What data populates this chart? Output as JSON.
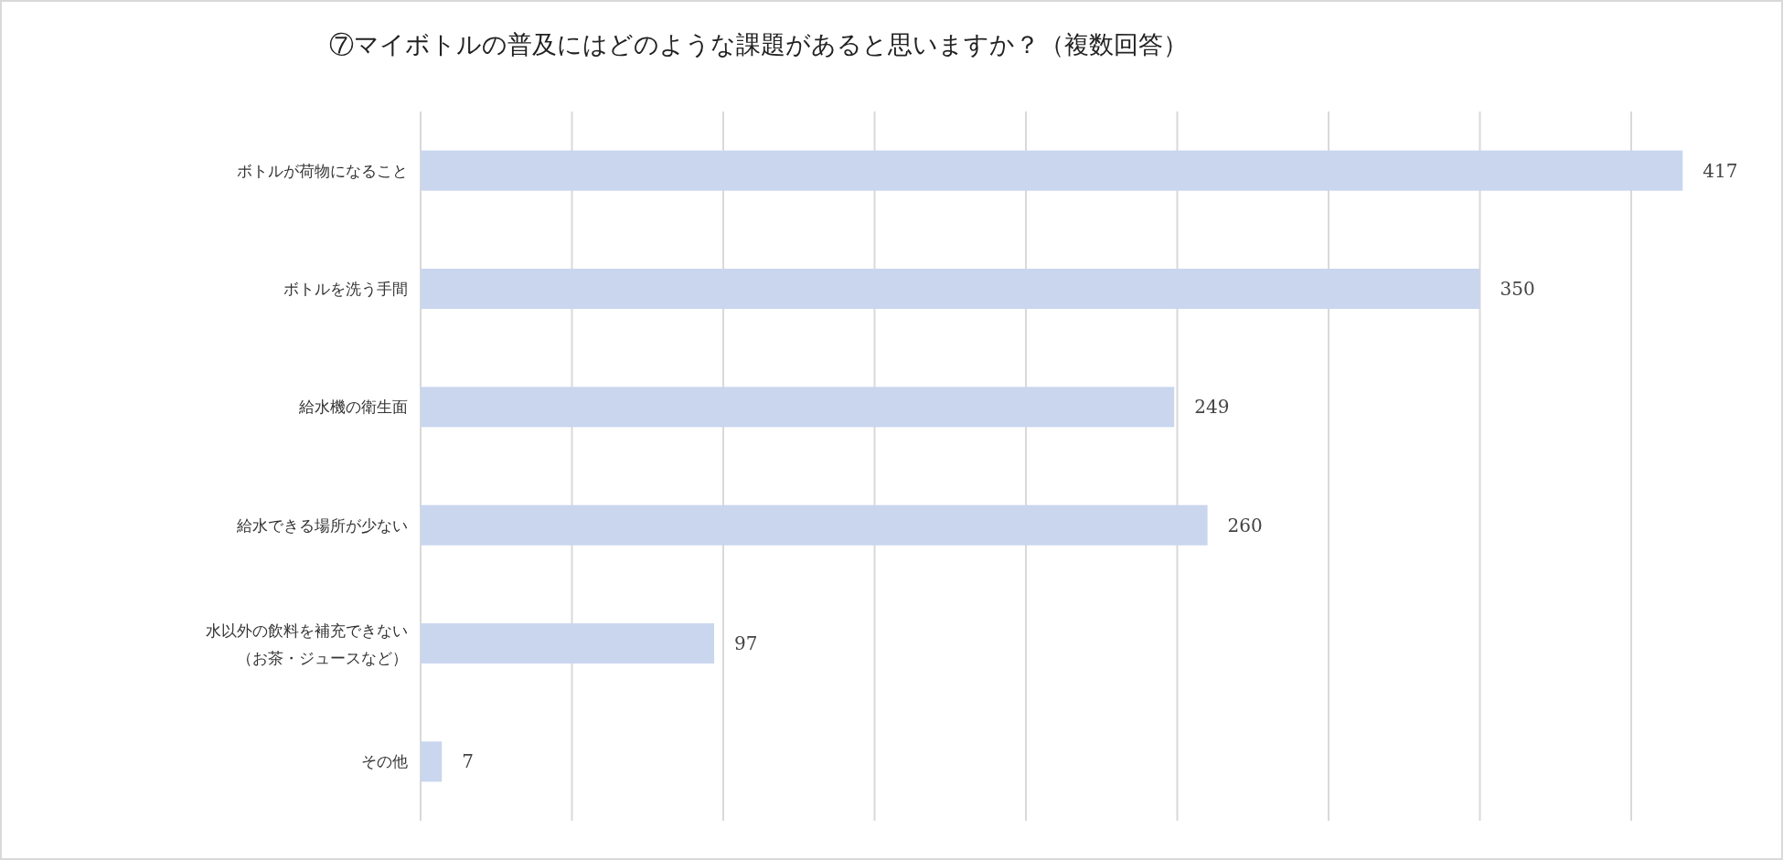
{
  "chart_data": {
    "type": "bar",
    "orientation": "horizontal",
    "title": "⑦マイボトルの普及にはどのような課題があると思いますか？（複数回答）",
    "categories": [
      "ボトルが荷物になること",
      "ボトルを洗う手間",
      "給水機の衛生面",
      "給水できる場所が少ない",
      "水以外の飲料を補充できない（お茶・ジュースなど）",
      "その他"
    ],
    "values": [
      417,
      350,
      249,
      260,
      97,
      7
    ],
    "color": "#c9d6ee",
    "data_labels": true,
    "xticks": [
      {
        "value": 0,
        "label": null
      },
      {
        "value": 50,
        "label": null
      },
      {
        "value": 100,
        "label": null
      },
      {
        "value": 150,
        "label": null
      },
      {
        "value": 200,
        "label": null
      },
      {
        "value": 250,
        "label": null
      },
      {
        "value": 300,
        "label": null
      },
      {
        "value": 350,
        "label": null
      },
      {
        "value": 400,
        "label": null
      }
    ],
    "grid": "x",
    "tick_labels": "y"
  }
}
